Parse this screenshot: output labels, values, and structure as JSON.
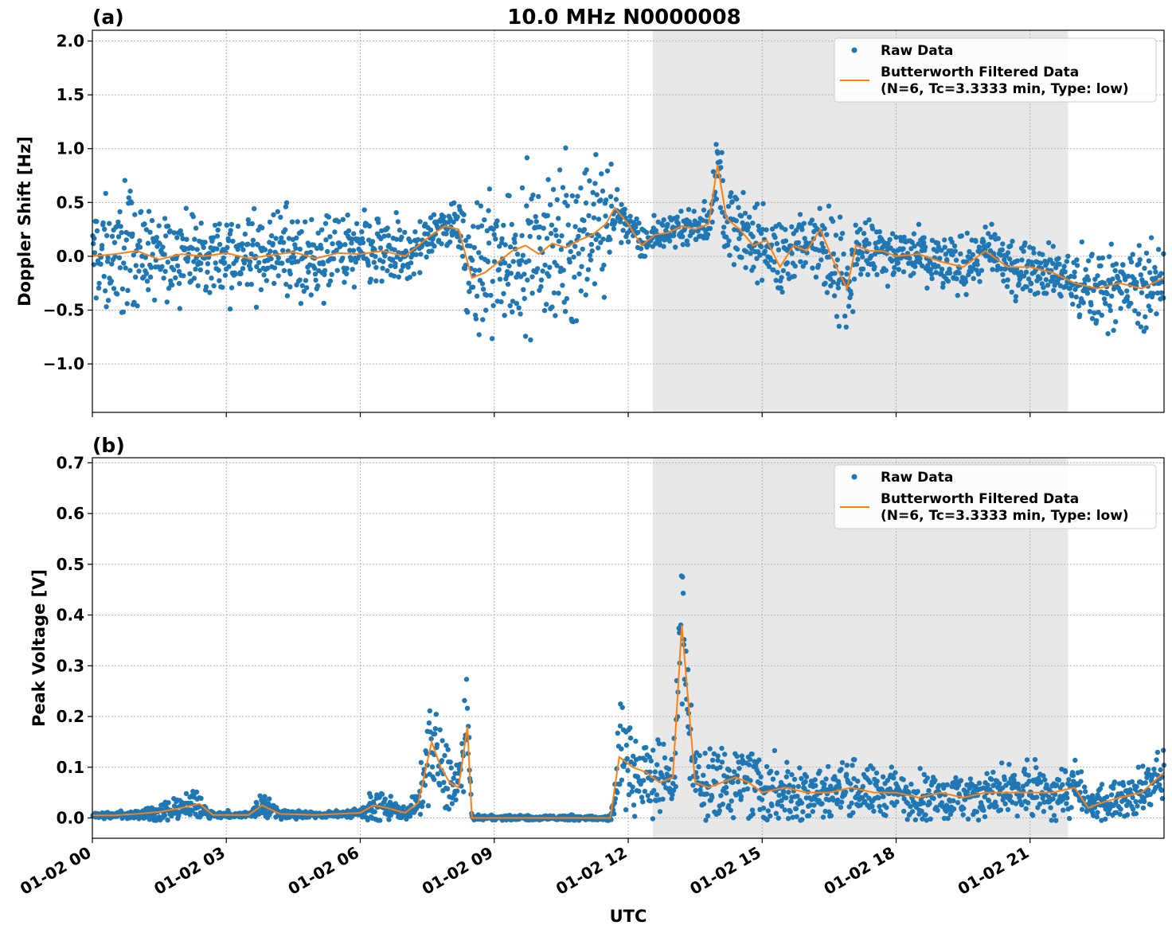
{
  "figure": {
    "title": "10.0 MHz N0000008",
    "xlabel": "UTC",
    "x_ticks": [
      "01-02 00",
      "01-02 03",
      "01-02 06",
      "01-02 09",
      "01-02 12",
      "01-02 15",
      "01-02 18",
      "01-02 21"
    ],
    "colors": {
      "raw": "#1f77b4",
      "filtered": "#ff7f0e",
      "shade": "#e8e8e8"
    }
  },
  "chart_data": [
    {
      "type": "scatter",
      "panel_label": "(a)",
      "ylabel": "Doppler Shift [Hz]",
      "xlim_hours": [
        0,
        24
      ],
      "ylim": [
        -1.45,
        2.1
      ],
      "y_ticks": [
        2.0,
        1.5,
        1.0,
        0.5,
        0.0,
        -0.5,
        -1.0
      ],
      "y_tick_labels": [
        "2.0",
        "1.5",
        "1.0",
        "0.5",
        "0.0",
        "−0.5",
        "−1.0"
      ],
      "shaded_span_hours": [
        12.55,
        21.85
      ],
      "grid": true,
      "legend_placement": "top-right",
      "legend": [
        "Raw Data",
        "Butterworth Filtered Data",
        "(N=6, Tc=3.3333 min, Type: low)"
      ],
      "series": [
        {
          "name": "Raw Data",
          "style": "points",
          "x": [
            0,
            0.5,
            1,
            1.5,
            2,
            2.5,
            3,
            3.5,
            4,
            4.5,
            5,
            5.5,
            6,
            6.5,
            7,
            7.3,
            7.6,
            7.9,
            8.2,
            8.5,
            8.8,
            9.1,
            9.4,
            9.7,
            10,
            10.3,
            10.6,
            10.9,
            11.2,
            11.5,
            11.7,
            12,
            12.3,
            12.6,
            12.9,
            13.2,
            13.5,
            13.8,
            14,
            14.2,
            14.5,
            14.8,
            15.1,
            15.4,
            15.7,
            16,
            16.3,
            16.6,
            16.9,
            17.1,
            17.4,
            17.7,
            18,
            18.5,
            19,
            19.5,
            20,
            20.5,
            21,
            21.5,
            22,
            22.5,
            23,
            23.5,
            24
          ],
          "y": [
            0,
            0.02,
            0.05,
            -0.03,
            0.02,
            0,
            0.03,
            -0.02,
            0.01,
            0.04,
            -0.02,
            0.03,
            0.02,
            0.05,
            0,
            0.1,
            0.2,
            0.28,
            0.25,
            -0.2,
            -0.15,
            -0.05,
            0.05,
            0.1,
            0.02,
            0.12,
            0.08,
            0.15,
            0.2,
            0.3,
            0.45,
            0.3,
            0.1,
            0.2,
            0.22,
            0.28,
            0.25,
            0.3,
            0.85,
            0.35,
            0.25,
            0.1,
            0.15,
            -0.1,
            0.1,
            0.05,
            0.25,
            -0.05,
            -0.3,
            0.1,
            0.05,
            0.05,
            0,
            0.02,
            -0.05,
            -0.1,
            0.05,
            -0.1,
            -0.1,
            -0.15,
            -0.25,
            -0.3,
            -0.25,
            -0.3,
            -0.2
          ],
          "spread": [
            0.35,
            0.45,
            0.4,
            0.3,
            0.3,
            0.3,
            0.3,
            0.3,
            0.3,
            0.3,
            0.3,
            0.3,
            0.3,
            0.3,
            0.25,
            0.2,
            0.15,
            0.15,
            0.2,
            0.6,
            0.55,
            0.6,
            0.6,
            0.55,
            0.5,
            0.5,
            0.55,
            0.6,
            0.55,
            0.5,
            0.2,
            0.15,
            0.12,
            0.12,
            0.1,
            0.12,
            0.12,
            0.15,
            0.3,
            0.3,
            0.25,
            0.25,
            0.25,
            0.3,
            0.25,
            0.25,
            0.35,
            0.35,
            0.45,
            0.25,
            0.25,
            0.2,
            0.2,
            0.2,
            0.2,
            0.2,
            0.2,
            0.2,
            0.2,
            0.2,
            0.25,
            0.3,
            0.25,
            0.3,
            0.25
          ]
        },
        {
          "name": "Butterworth Filtered Data",
          "style": "line",
          "x": [
            0,
            0.5,
            1,
            1.5,
            2,
            2.5,
            3,
            3.5,
            4,
            4.5,
            5,
            5.5,
            6,
            6.5,
            7,
            7.3,
            7.6,
            7.9,
            8.2,
            8.5,
            8.8,
            9.1,
            9.4,
            9.7,
            10,
            10.3,
            10.6,
            10.9,
            11.2,
            11.5,
            11.7,
            12,
            12.3,
            12.6,
            12.9,
            13.2,
            13.5,
            13.8,
            14,
            14.2,
            14.5,
            14.8,
            15.1,
            15.4,
            15.7,
            16,
            16.3,
            16.6,
            16.9,
            17.1,
            17.4,
            17.7,
            18,
            18.5,
            19,
            19.5,
            20,
            20.5,
            21,
            21.5,
            22,
            22.5,
            23,
            23.5,
            24
          ],
          "y": [
            0,
            0.02,
            0.05,
            -0.03,
            0.02,
            0,
            0.03,
            -0.02,
            0.01,
            0.04,
            -0.02,
            0.03,
            0.02,
            0.05,
            0,
            0.1,
            0.2,
            0.28,
            0.25,
            -0.2,
            -0.15,
            -0.05,
            0.05,
            0.1,
            0.02,
            0.12,
            0.08,
            0.15,
            0.2,
            0.3,
            0.45,
            0.3,
            0.1,
            0.2,
            0.22,
            0.28,
            0.25,
            0.3,
            0.85,
            0.35,
            0.25,
            0.1,
            0.15,
            -0.1,
            0.1,
            0.05,
            0.25,
            -0.05,
            -0.3,
            0.1,
            0.05,
            0.05,
            0,
            0.02,
            -0.05,
            -0.1,
            0.05,
            -0.1,
            -0.1,
            -0.15,
            -0.25,
            -0.3,
            -0.25,
            -0.3,
            -0.2
          ]
        }
      ]
    },
    {
      "type": "scatter",
      "panel_label": "(b)",
      "ylabel": "Peak Voltage [V]",
      "xlim_hours": [
        0,
        24
      ],
      "ylim": [
        -0.04,
        0.71
      ],
      "y_ticks": [
        0.7,
        0.6,
        0.5,
        0.4,
        0.3,
        0.2,
        0.1,
        0.0
      ],
      "y_tick_labels": [
        "0.7",
        "0.6",
        "0.5",
        "0.4",
        "0.3",
        "0.2",
        "0.1",
        "0.0"
      ],
      "shaded_span_hours": [
        12.55,
        21.85
      ],
      "grid": true,
      "legend_placement": "top-right",
      "legend": [
        "Raw Data",
        "Butterworth Filtered Data",
        "(N=6, Tc=3.3333 min, Type: low)"
      ],
      "series": [
        {
          "name": "Raw Data",
          "style": "points",
          "x": [
            0,
            0.5,
            1,
            1.5,
            2,
            2.4,
            2.7,
            3,
            3.5,
            3.8,
            4.2,
            5,
            5.5,
            6,
            6.3,
            6.6,
            7,
            7.3,
            7.6,
            7.8,
            8,
            8.2,
            8.4,
            8.5,
            9,
            10,
            11,
            11.6,
            11.8,
            12.1,
            12.4,
            12.7,
            13,
            13.2,
            13.5,
            13.8,
            14.1,
            14.4,
            14.7,
            15,
            15.5,
            16,
            16.5,
            17,
            17.5,
            18,
            18.5,
            19,
            19.5,
            20,
            20.5,
            21,
            21.5,
            22,
            22.3,
            22.6,
            23,
            23.5,
            24
          ],
          "y": [
            0.005,
            0.005,
            0.008,
            0.012,
            0.02,
            0.028,
            0.006,
            0.006,
            0.006,
            0.025,
            0.008,
            0.006,
            0.008,
            0.01,
            0.025,
            0.02,
            0.01,
            0.03,
            0.15,
            0.1,
            0.07,
            0.06,
            0.18,
            0,
            0,
            0,
            0,
            0,
            0.12,
            0.1,
            0.09,
            0.07,
            0.08,
            0.38,
            0.07,
            0.06,
            0.07,
            0.08,
            0.07,
            0.05,
            0.06,
            0.05,
            0.05,
            0.06,
            0.05,
            0.05,
            0.04,
            0.05,
            0.04,
            0.05,
            0.05,
            0.05,
            0.05,
            0.06,
            0.02,
            0.03,
            0.04,
            0.05,
            0.09
          ],
          "spread": [
            0.005,
            0.005,
            0.008,
            0.015,
            0.02,
            0.025,
            0.005,
            0.005,
            0.005,
            0.02,
            0.008,
            0.005,
            0.005,
            0.01,
            0.025,
            0.02,
            0.01,
            0.03,
            0.07,
            0.06,
            0.05,
            0.06,
            0.08,
            0.004,
            0.004,
            0.004,
            0.004,
            0.004,
            0.08,
            0.07,
            0.07,
            0.06,
            0.06,
            0.12,
            0.06,
            0.06,
            0.06,
            0.06,
            0.06,
            0.05,
            0.05,
            0.05,
            0.04,
            0.04,
            0.04,
            0.04,
            0.04,
            0.04,
            0.04,
            0.04,
            0.04,
            0.04,
            0.04,
            0.05,
            0.02,
            0.03,
            0.03,
            0.04,
            0.06
          ]
        },
        {
          "name": "Butterworth Filtered Data",
          "style": "line",
          "x": [
            0,
            0.5,
            1,
            1.5,
            2,
            2.4,
            2.7,
            3,
            3.5,
            3.8,
            4.2,
            5,
            5.5,
            6,
            6.3,
            6.6,
            7,
            7.3,
            7.6,
            7.8,
            8,
            8.2,
            8.4,
            8.5,
            9,
            10,
            11,
            11.6,
            11.8,
            12.1,
            12.4,
            12.7,
            13,
            13.2,
            13.5,
            13.8,
            14.1,
            14.4,
            14.7,
            15,
            15.5,
            16,
            16.5,
            17,
            17.5,
            18,
            18.5,
            19,
            19.5,
            20,
            20.5,
            21,
            21.5,
            22,
            22.3,
            22.6,
            23,
            23.5,
            24
          ],
          "y": [
            0.005,
            0.005,
            0.008,
            0.012,
            0.02,
            0.028,
            0.006,
            0.006,
            0.006,
            0.025,
            0.008,
            0.006,
            0.008,
            0.01,
            0.025,
            0.02,
            0.01,
            0.03,
            0.15,
            0.1,
            0.07,
            0.06,
            0.18,
            0,
            0,
            0,
            0,
            0,
            0.12,
            0.1,
            0.09,
            0.07,
            0.08,
            0.38,
            0.07,
            0.06,
            0.07,
            0.08,
            0.07,
            0.05,
            0.06,
            0.05,
            0.05,
            0.06,
            0.05,
            0.05,
            0.04,
            0.05,
            0.04,
            0.05,
            0.05,
            0.05,
            0.05,
            0.06,
            0.02,
            0.03,
            0.04,
            0.05,
            0.09
          ]
        }
      ]
    }
  ]
}
